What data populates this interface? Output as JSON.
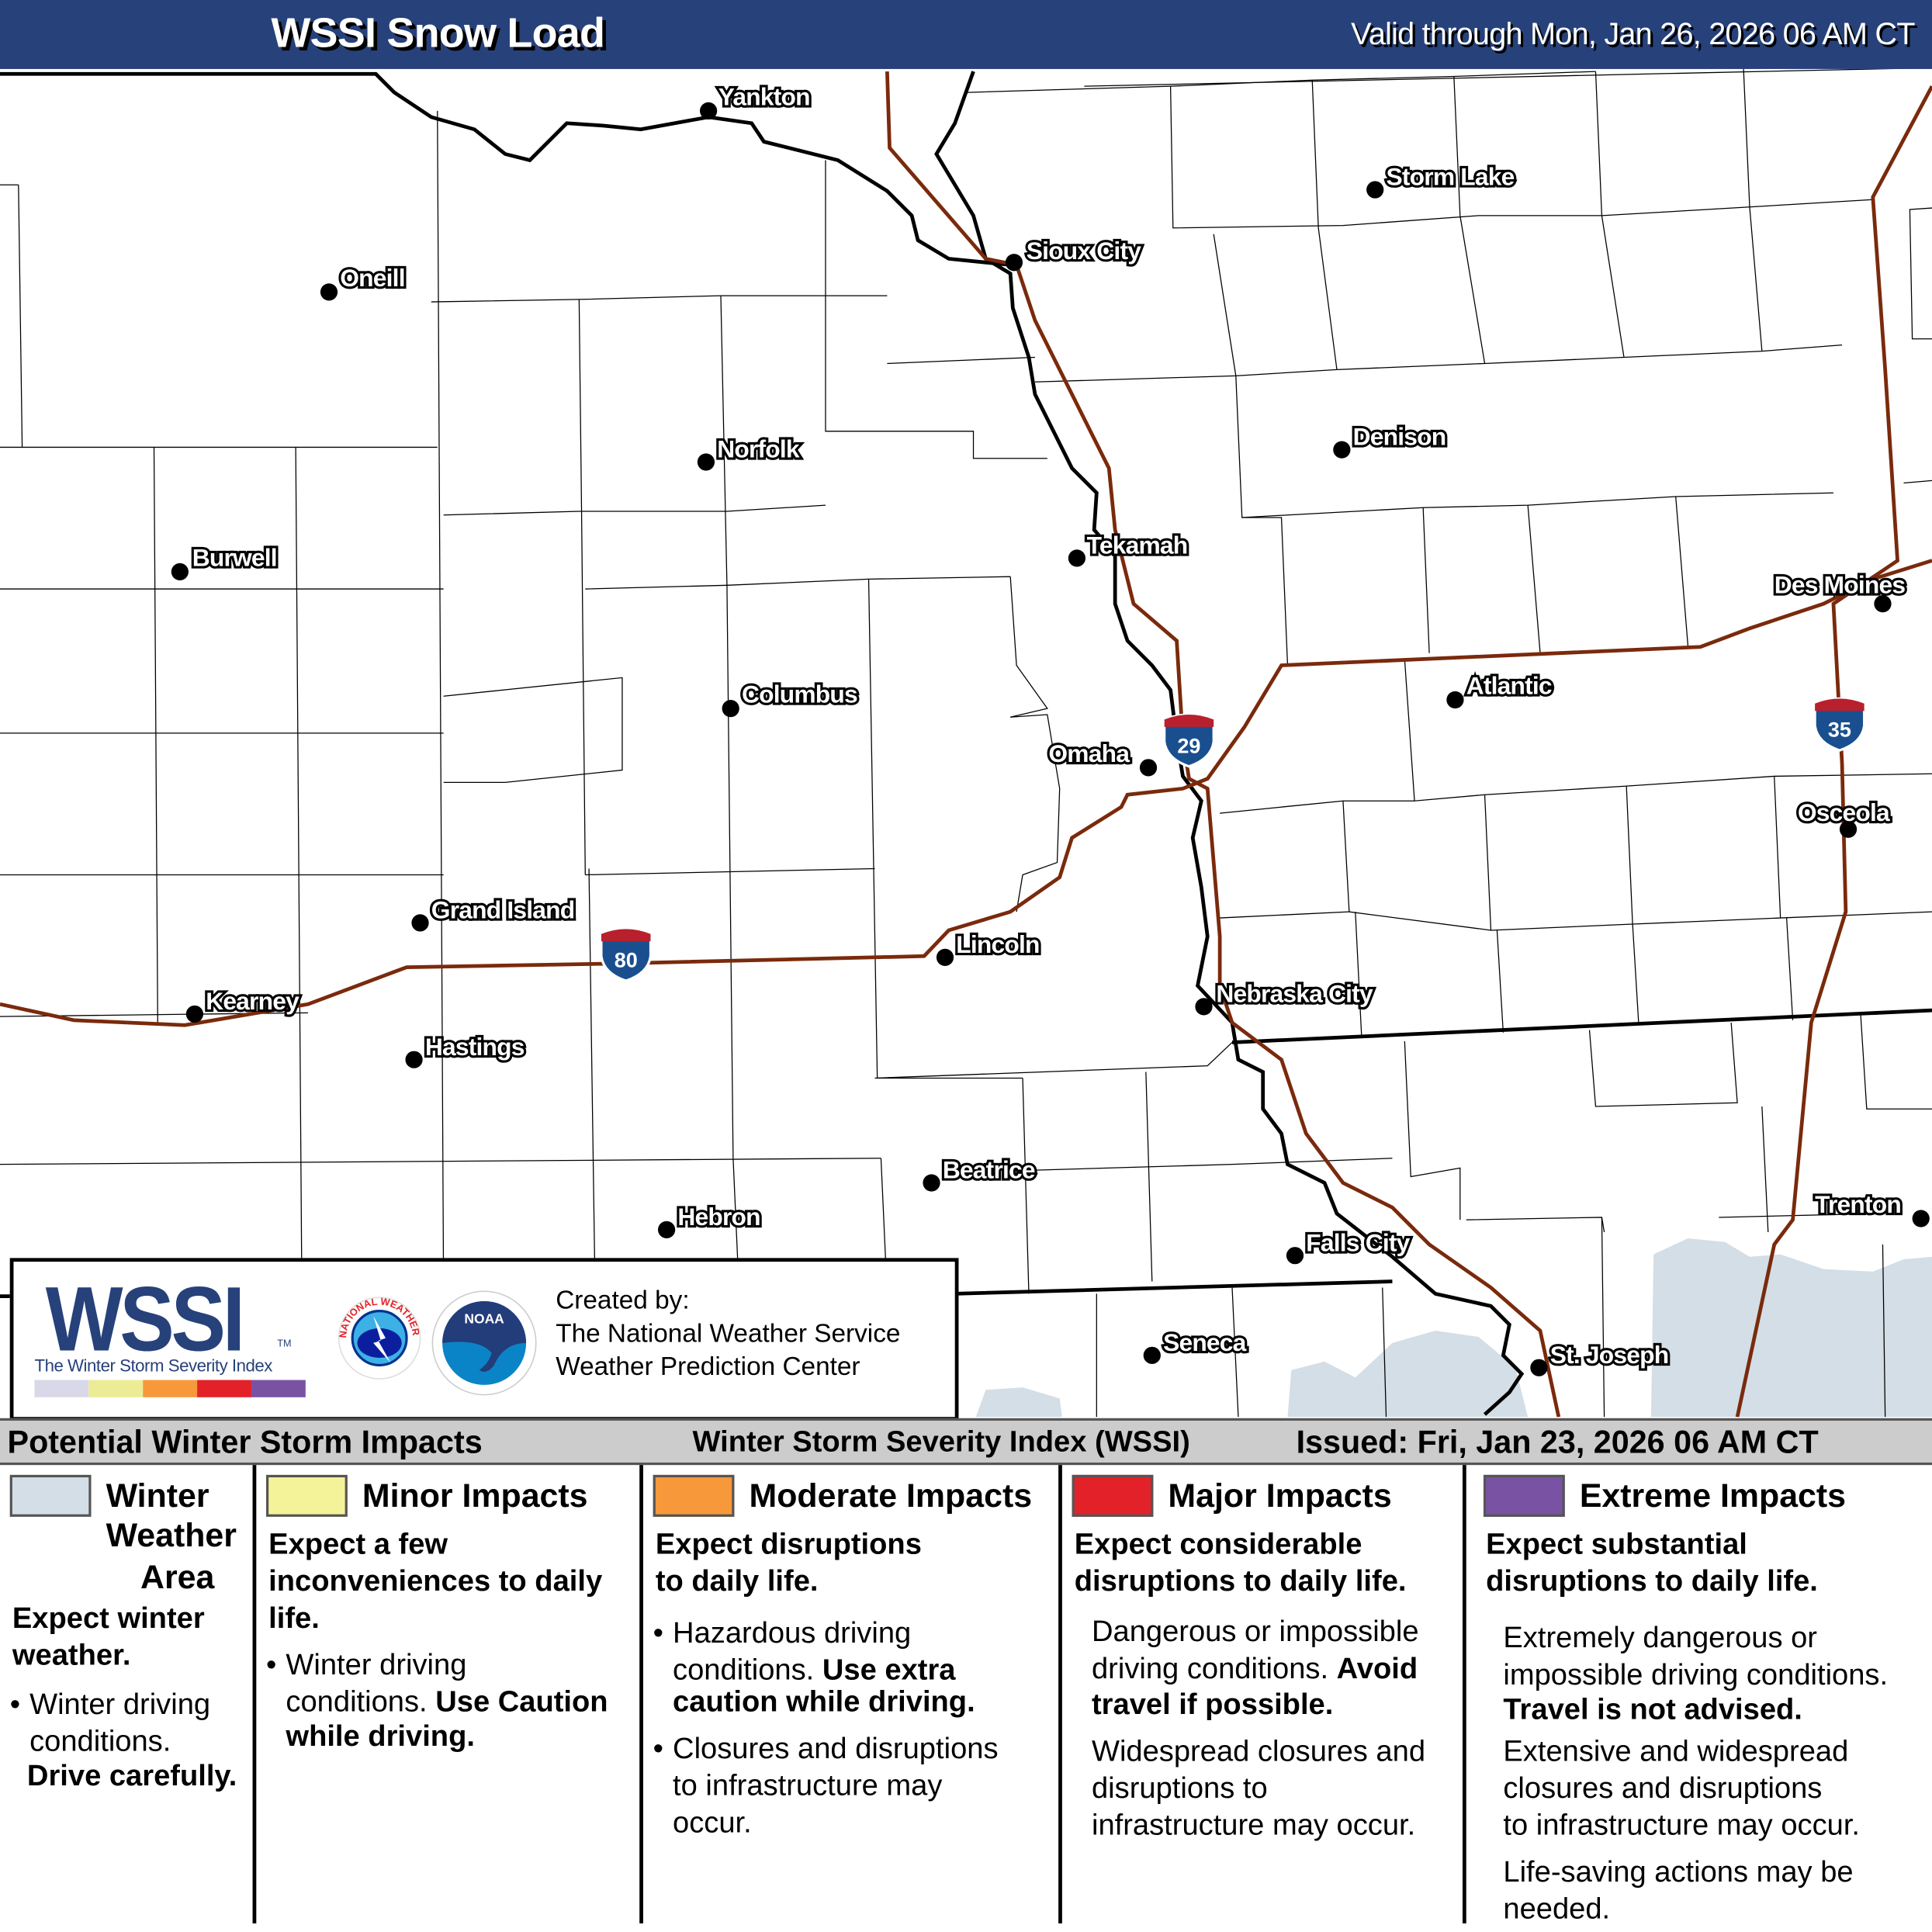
{
  "header": {
    "title": "WSSI Snow Load",
    "valid": "Valid through Mon, Jan 26, 2026 06 AM CT"
  },
  "colors": {
    "header_bg": "#27417a",
    "interstate": "#7a2a0c",
    "winter_weather_area": "#d3dee6",
    "minor": "#f4f39a",
    "moderate": "#f7993a",
    "major": "#e32129",
    "extreme": "#7a52a3"
  },
  "cities": [
    {
      "name": "Yankton"
    },
    {
      "name": "Storm Lake"
    },
    {
      "name": "Sioux City"
    },
    {
      "name": "Oneill"
    },
    {
      "name": "Norfolk"
    },
    {
      "name": "Denison"
    },
    {
      "name": "Burwell"
    },
    {
      "name": "Tekamah"
    },
    {
      "name": "Des Moines"
    },
    {
      "name": "Columbus"
    },
    {
      "name": "Atlantic"
    },
    {
      "name": "Omaha"
    },
    {
      "name": "Osceola"
    },
    {
      "name": "Grand Island"
    },
    {
      "name": "Lincoln"
    },
    {
      "name": "Kearney"
    },
    {
      "name": "Nebraska City"
    },
    {
      "name": "Hastings"
    },
    {
      "name": "Beatrice"
    },
    {
      "name": "Trenton"
    },
    {
      "name": "Hebron"
    },
    {
      "name": "Falls City"
    },
    {
      "name": "Seneca"
    },
    {
      "name": "St. Joseph"
    }
  ],
  "shields": [
    "80",
    "29",
    "35"
  ],
  "logo": {
    "wssi": "WSSI",
    "tm": "TM",
    "subtitle": "The Winter Storm Severity Index",
    "created": "Created by:",
    "org1": "The National Weather Service",
    "org2": "Weather Prediction Center",
    "nws": "NATIONAL WEATHER SERVICE",
    "noaa": "NOAA"
  },
  "legend_header": {
    "left": "Potential Winter Storm Impacts",
    "center": "Winter Storm Severity Index (WSSI)",
    "right": "Issued: Fri, Jan 23, 2026 06 AM CT"
  },
  "legend": [
    {
      "title1": "Winter",
      "title2": "Weather",
      "title3": "Area",
      "lead1": "Expect winter",
      "lead2": "weather.",
      "b1a": "Winter driving",
      "b1b": "conditions.",
      "b1c": "Drive carefully."
    },
    {
      "title": "Minor Impacts",
      "lead1": "Expect a few",
      "lead2": "inconveniences to daily",
      "lead3": "life.",
      "b1a": "Winter driving",
      "b1b": "conditions.",
      "b1c": "Use Caution",
      "b1d": "while driving."
    },
    {
      "title": "Moderate Impacts",
      "lead1": "Expect disruptions",
      "lead2": "to daily life.",
      "b1a": "Hazardous driving",
      "b1b": "conditions.",
      "b1c": "Use extra",
      "b1d": "caution while driving.",
      "b2a": "Closures and disruptions",
      "b2b": "to infrastructure may",
      "b2c": "occur."
    },
    {
      "title": "Major Impacts",
      "lead1": "Expect considerable",
      "lead2": "disruptions to daily life.",
      "p1a": "Dangerous or impossible",
      "p1b": "driving conditions.",
      "p1c": "Avoid",
      "p1d": "travel if possible.",
      "p2a": "Widespread closures and",
      "p2b": "disruptions to",
      "p2c": "infrastructure may occur."
    },
    {
      "title": "Extreme Impacts",
      "lead1": "Expect substantial",
      "lead2": "disruptions to daily life.",
      "p1a": "Extremely dangerous or",
      "p1b": "impossible driving conditions.",
      "p1c": "Travel is not advised.",
      "p2a": "Extensive and widespread",
      "p2b": "closures and disruptions",
      "p2c": "to infrastructure may occur.",
      "p3a": "Life-saving actions may be",
      "p3b": "needed."
    }
  ]
}
